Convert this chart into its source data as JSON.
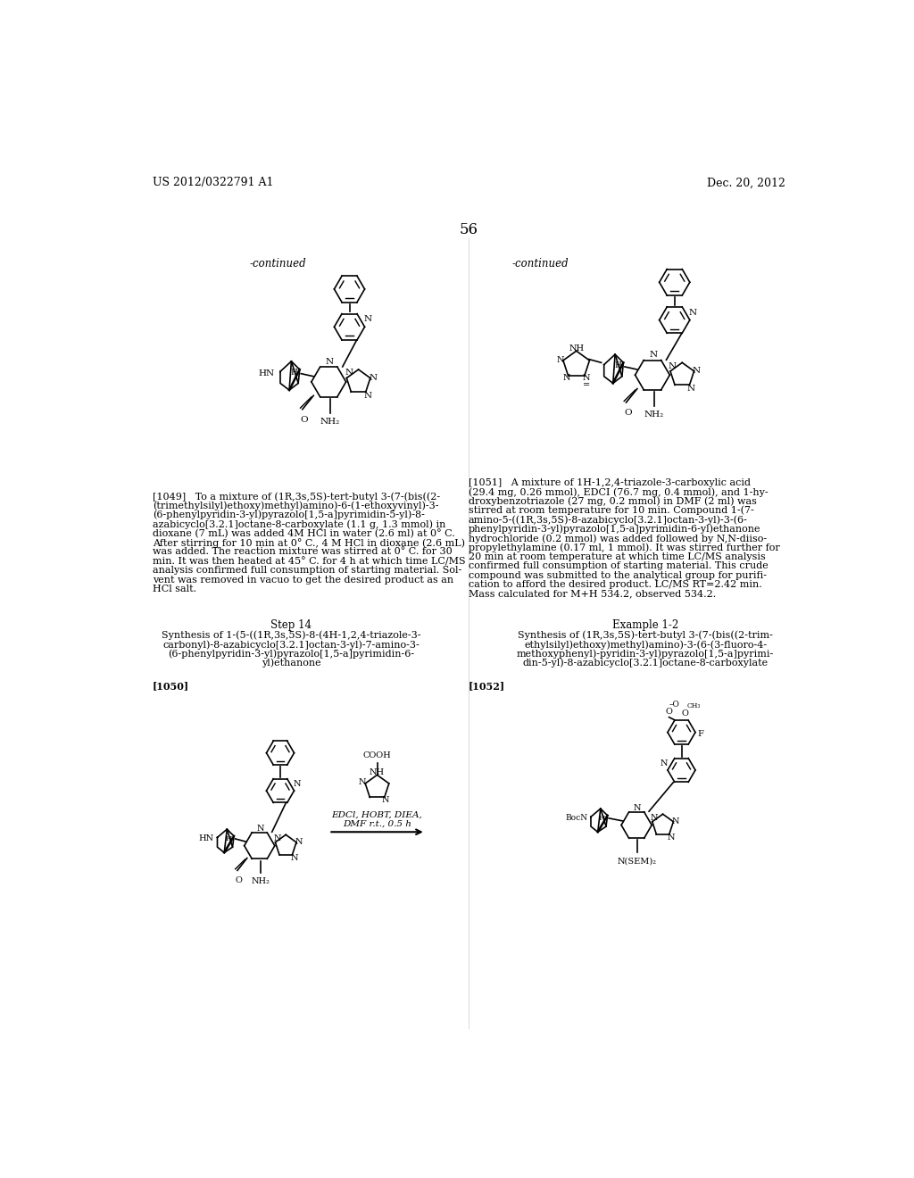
{
  "background_color": "#ffffff",
  "page_number": "56",
  "header_left": "US 2012/0322791 A1",
  "header_right": "Dec. 20, 2012",
  "continued_left": "-continued",
  "continued_right": "-continued",
  "para1049_lines": [
    "[1049]   To a mixture of (1R,3s,5S)-tert-butyl 3-(7-(bis((2-",
    "(trimethylsilyl)ethoxy)methyl)amino)-6-(1-ethoxyvinyl)-3-",
    "(6-phenylpyridin-3-yl)pyrazolo[1,5-a]pyrimidin-5-yl)-8-",
    "azabicyclo[3.2.1]octane-8-carboxylate (1.1 g, 1.3 mmol) in",
    "dioxane (7 mL) was added 4M HCl in water (2.6 ml) at 0° C.",
    "After stirring for 10 min at 0° C., 4 M HCl in dioxane (2.6 mL)",
    "was added. The reaction mixture was stirred at 0° C. for 30",
    "min. It was then heated at 45° C. for 4 h at which time LC/MS",
    "analysis confirmed full consumption of starting material. Sol-",
    "vent was removed in vacuo to get the desired product as an",
    "HCl salt."
  ],
  "step14_title": "Step 14",
  "step14_lines": [
    "Synthesis of 1-(5-((1R,3s,5S)-8-(4H-1,2,4-triazole-3-",
    "carbonyl)-8-azabicyclo[3.2.1]octan-3-yl)-7-amino-3-",
    "(6-phenylpyridin-3-yl)pyrazolo[1,5-a]pyrimidin-6-",
    "yl)ethanone"
  ],
  "para1050_label": "[1050]",
  "para1051_lines": [
    "[1051]   A mixture of 1H-1,2,4-triazole-3-carboxylic acid",
    "(29.4 mg, 0.26 mmol), EDCI (76.7 mg, 0.4 mmol), and 1-hy-",
    "droxybenzotriazole (27 mg, 0.2 mmol) in DMF (2 ml) was",
    "stirred at room temperature for 10 min. Compound 1-(7-",
    "amino-5-((1R,3s,5S)-8-azabicyclo[3.2.1]octan-3-yl)-3-(6-",
    "phenylpyridin-3-yl)pyrazolo[1,5-a]pyrimidin-6-yl)ethanone",
    "hydrochloride (0.2 mmol) was added followed by N,N-diiso-",
    "propylethylamine (0.17 ml, 1 mmol). It was stirred further for",
    "20 min at room temperature at which time LC/MS analysis",
    "confirmed full consumption of starting material. This crude",
    "compound was submitted to the analytical group for purifi-",
    "cation to afford the desired product. LC/MS RT=2.42 min.",
    "Mass calculated for M+H 534.2, observed 534.2."
  ],
  "example12_title": "Example 1-2",
  "example12_lines": [
    "Synthesis of (1R,3s,5S)-tert-butyl 3-(7-(bis((2-trim-",
    "ethylsilyl)ethoxy)methyl)amino)-3-(6-(3-fluoro-4-",
    "methoxyphenyl)-pyridin-3-yl)pyrazolo[1,5-a]pyrimi-",
    "din-5-yl)-8-azabicyclo[3.2.1]octane-8-carboxylate"
  ],
  "para1052_label": "[1052]"
}
